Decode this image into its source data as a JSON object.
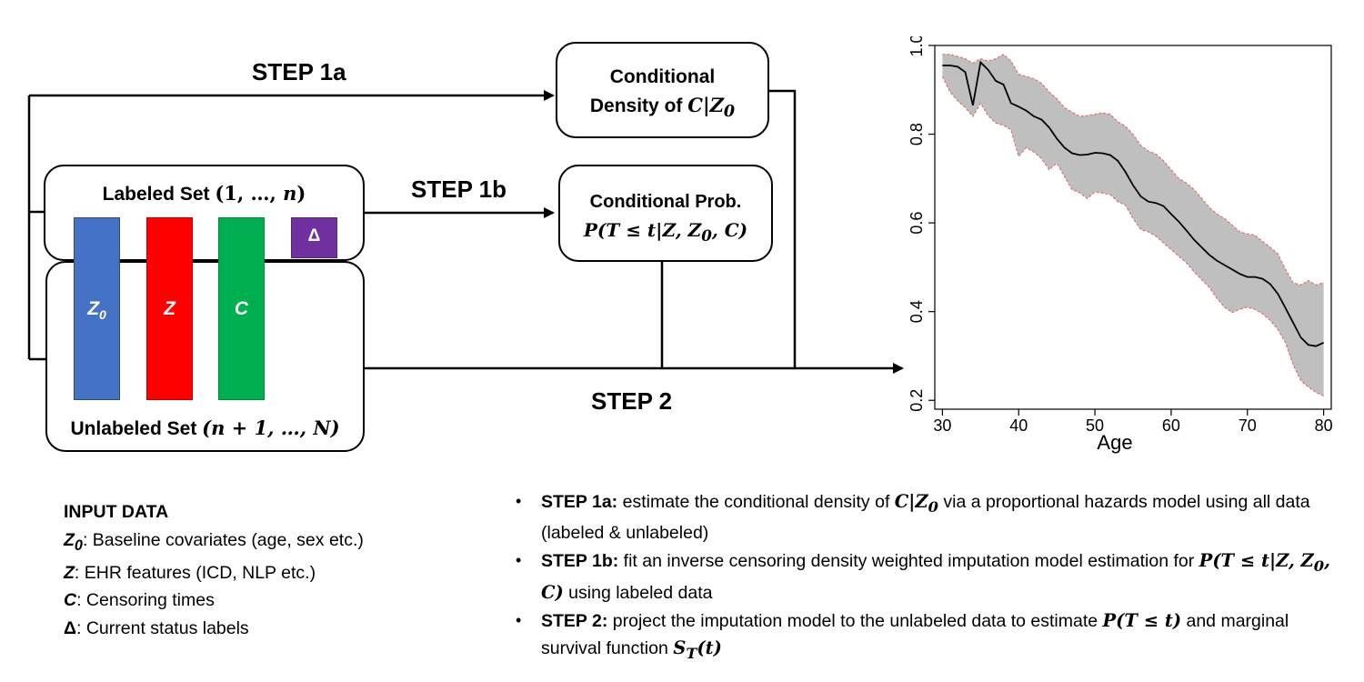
{
  "boxes": {
    "labeled_set": "Labeled Set (1, …, n)",
    "unlabeled_set": "Unlabeled Set (n + 1, …, N)",
    "cond_density_line1": "Conditional",
    "cond_density_line2": "Density of C|Z0",
    "cond_prob_line1": "Conditional Prob.",
    "cond_prob_line2": "P(T ≤ t|Z, Z0, C)"
  },
  "bars": {
    "z0": "Z0",
    "z": "Z",
    "c": "C",
    "delta": "Δ"
  },
  "colors": {
    "z0": "#4472c4",
    "z": "#ff0000",
    "c": "#00b050",
    "delta": "#7030a0",
    "band": "#bfbfbf",
    "band_edge": "#e07070"
  },
  "steps": {
    "step1a": "STEP 1a",
    "step1b": "STEP 1b",
    "step2": "STEP 2"
  },
  "input_data": {
    "header": "INPUT DATA",
    "items": [
      {
        "sym": "Z0",
        "text": ": Baseline covariates (age, sex etc.)"
      },
      {
        "sym": "Z",
        "text": ": EHR features (ICD, NLP etc.)"
      },
      {
        "sym": "C",
        "text": ": Censoring times"
      },
      {
        "sym": "Δ",
        "text": ": Current status labels"
      }
    ]
  },
  "bullets": [
    {
      "step": "STEP 1a:",
      "text": " estimate the conditional density of C|Z0 via a proportional hazards model using all data (labeled & unlabeled)"
    },
    {
      "step": "STEP 1b:",
      "text": " fit an inverse censoring density weighted imputation model estimation for P(T ≤ t|Z, Z0, C) using labeled data"
    },
    {
      "step": "STEP 2:",
      "text": " project the imputation model to the unlabeled data to estimate P(T ≤ t) and marginal survival function ST(t)"
    }
  ],
  "chart_data": {
    "type": "line",
    "xlabel": "Age",
    "ylabel": "",
    "xlim": [
      29,
      81
    ],
    "ylim": [
      0.18,
      1.0
    ],
    "xticks": [
      30,
      40,
      50,
      60,
      70,
      80
    ],
    "yticks": [
      0.2,
      0.4,
      0.6,
      0.8,
      1.0
    ],
    "xtick_labels": [
      "30",
      "40",
      "50",
      "60",
      "70",
      "80"
    ],
    "ytick_labels": [
      "0.2",
      "0.4",
      "0.6",
      "0.8",
      "1.0"
    ],
    "x": [
      30,
      31,
      32,
      33,
      34,
      35,
      36,
      37,
      38,
      39,
      40,
      41,
      42,
      43,
      44,
      45,
      46,
      47,
      48,
      49,
      50,
      51,
      52,
      53,
      54,
      55,
      56,
      57,
      58,
      59,
      60,
      61,
      62,
      63,
      64,
      65,
      66,
      67,
      68,
      69,
      70,
      71,
      72,
      73,
      74,
      75,
      76,
      77,
      78,
      79,
      80
    ],
    "estimate": [
      0.955,
      0.955,
      0.952,
      0.94,
      0.865,
      0.962,
      0.945,
      0.92,
      0.912,
      0.87,
      0.862,
      0.853,
      0.84,
      0.833,
      0.815,
      0.79,
      0.77,
      0.757,
      0.753,
      0.754,
      0.758,
      0.757,
      0.753,
      0.74,
      0.715,
      0.685,
      0.66,
      0.648,
      0.645,
      0.638,
      0.62,
      0.603,
      0.583,
      0.562,
      0.545,
      0.528,
      0.515,
      0.505,
      0.495,
      0.485,
      0.478,
      0.478,
      0.474,
      0.462,
      0.44,
      0.408,
      0.375,
      0.342,
      0.325,
      0.322,
      0.33
    ],
    "lower": [
      0.93,
      0.895,
      0.875,
      0.86,
      0.84,
      0.87,
      0.842,
      0.825,
      0.82,
      0.81,
      0.75,
      0.77,
      0.76,
      0.745,
      0.72,
      0.735,
      0.705,
      0.675,
      0.668,
      0.655,
      0.67,
      0.667,
      0.664,
      0.648,
      0.64,
      0.61,
      0.585,
      0.58,
      0.57,
      0.555,
      0.54,
      0.525,
      0.51,
      0.49,
      0.472,
      0.455,
      0.43,
      0.41,
      0.398,
      0.405,
      0.41,
      0.405,
      0.395,
      0.38,
      0.36,
      0.33,
      0.28,
      0.245,
      0.23,
      0.218,
      0.21
    ],
    "upper": [
      0.98,
      0.98,
      0.975,
      0.97,
      0.96,
      0.97,
      0.965,
      0.97,
      0.98,
      0.965,
      0.935,
      0.93,
      0.925,
      0.915,
      0.895,
      0.88,
      0.86,
      0.85,
      0.84,
      0.842,
      0.845,
      0.848,
      0.845,
      0.828,
      0.818,
      0.8,
      0.775,
      0.762,
      0.755,
      0.74,
      0.72,
      0.7,
      0.69,
      0.675,
      0.655,
      0.635,
      0.62,
      0.61,
      0.595,
      0.58,
      0.575,
      0.572,
      0.558,
      0.545,
      0.53,
      0.495,
      0.465,
      0.46,
      0.47,
      0.46,
      0.465
    ]
  }
}
